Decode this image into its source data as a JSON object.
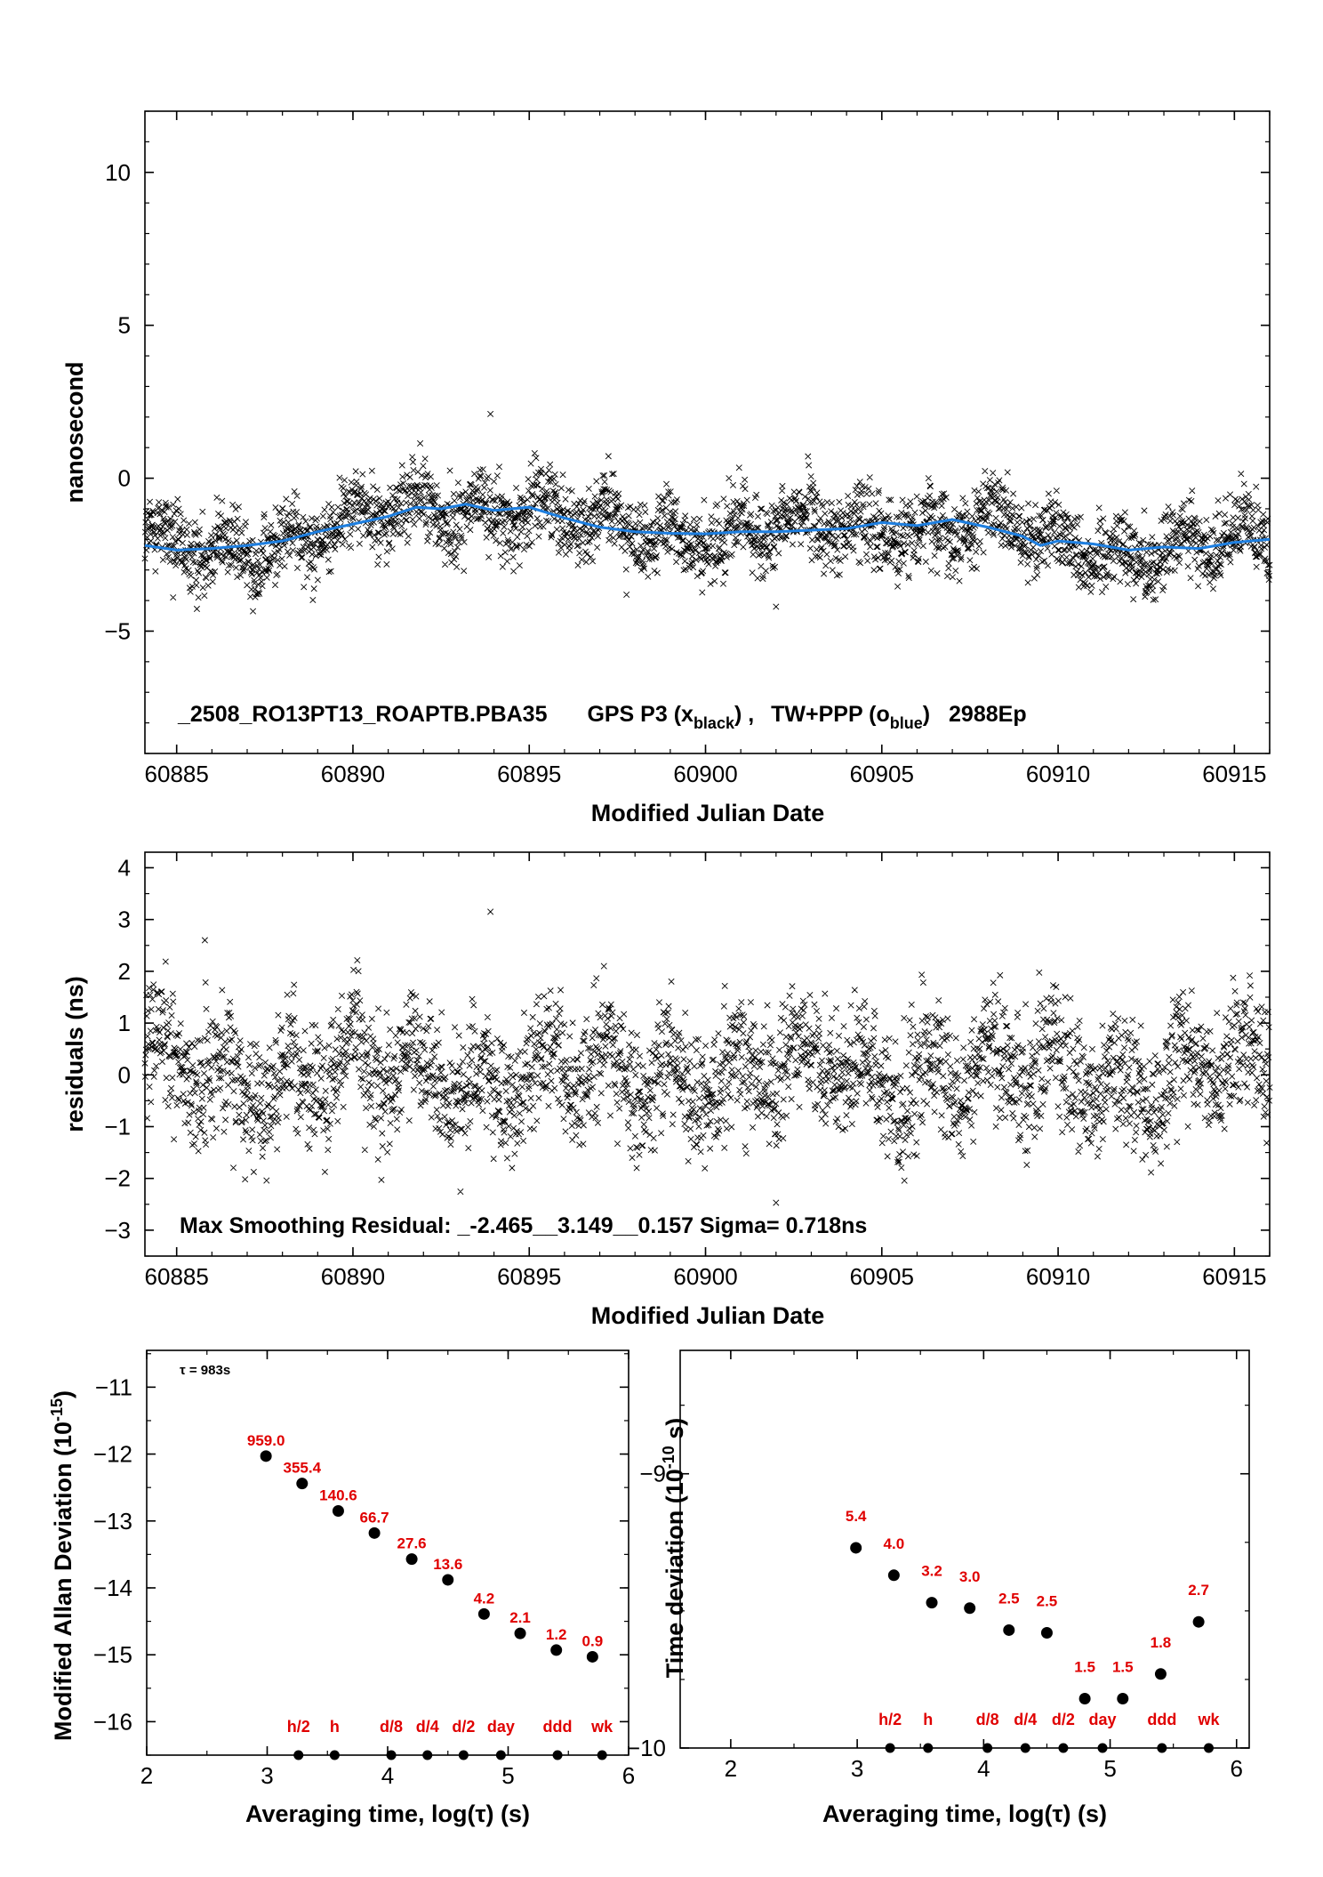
{
  "colors": {
    "points": "#000000",
    "smooth": "#1e7fe0",
    "labels": "#e00000"
  },
  "chart_data": [
    {
      "type": "scatter",
      "title": "_2508_RO13PT13_ROAPTB.PBA35     GPS P3 (x_black) ,  TW+PPP (o_blue)  2988Ep",
      "title_parts": {
        "left": "_2508_RO13PT13_ROAPTB.PBA35",
        "gps": "GPS P3 (x",
        "gps_sub": "black",
        "gps_close": ") ,",
        "tw": "TW+PPP (o",
        "tw_sub": "blue",
        "tw_close": ")",
        "ep": "2988Ep"
      },
      "xlabel": "Modified Julian Date",
      "ylabel": "nanosecond",
      "xlim": [
        60884.1,
        60916.0
      ],
      "ylim": [
        -9.0,
        12.0
      ],
      "xticks": [
        60885,
        60890,
        60895,
        60900,
        60905,
        60910,
        60915
      ],
      "yticks": [
        -5,
        0,
        5,
        10
      ],
      "ytick_labels": [
        "−5",
        "0",
        "5",
        "10"
      ],
      "grid": false,
      "series": [
        {
          "marker": "x",
          "color": "#000000",
          "count": 2988,
          "density_note": "dense noisy cloud around smooth curve, sigma ~0.72 ns",
          "outliers": [
            [
              60893.9,
              2.1
            ],
            [
              60902.0,
              -4.2
            ],
            [
              60884.9,
              -3.9
            ]
          ]
        },
        {
          "marker": "o",
          "color": "#1e7fe0",
          "smooth_x": [
            60884.1,
            60885.0,
            60886.0,
            60887.0,
            60888.0,
            60889.0,
            60890.0,
            60891.0,
            60891.8,
            60892.5,
            60893.2,
            60894.0,
            60895.0,
            60896.0,
            60897.0,
            60898.0,
            60899.0,
            60900.0,
            60901.0,
            60902.0,
            60903.0,
            60904.0,
            60905.0,
            60906.0,
            60907.0,
            60908.0,
            60909.0,
            60909.5,
            60910.0,
            60911.0,
            60912.0,
            60913.0,
            60914.0,
            60915.0,
            60916.0
          ],
          "smooth_y": [
            -2.2,
            -2.35,
            -2.3,
            -2.2,
            -2.05,
            -1.75,
            -1.5,
            -1.25,
            -0.95,
            -1.0,
            -0.85,
            -1.05,
            -0.95,
            -1.3,
            -1.6,
            -1.75,
            -1.8,
            -1.82,
            -1.75,
            -1.75,
            -1.7,
            -1.65,
            -1.45,
            -1.55,
            -1.35,
            -1.6,
            -1.9,
            -2.2,
            -2.05,
            -2.15,
            -2.35,
            -2.25,
            -2.3,
            -2.1,
            -2.0
          ]
        }
      ]
    },
    {
      "type": "scatter",
      "xlabel": "Modified Julian Date",
      "ylabel": "residuals (ns)",
      "xlim": [
        60884.1,
        60916.0
      ],
      "ylim": [
        -3.5,
        4.3
      ],
      "xticks": [
        60885,
        60890,
        60895,
        60900,
        60905,
        60910,
        60915
      ],
      "yticks": [
        -3,
        -2,
        -1,
        0,
        1,
        2,
        3,
        4
      ],
      "ytick_labels": [
        "−3",
        "−2",
        "−1",
        "0",
        "1",
        "2",
        "3",
        "4"
      ],
      "annotation": "Max Smoothing Residual: _-2.465__3.149__0.157  Sigma= 0.718ns",
      "series": [
        {
          "marker": "x",
          "color": "#000000",
          "count": 2988,
          "sigma": 0.718,
          "outliers": [
            [
              60893.9,
              3.15
            ],
            [
              60902.0,
              -2.47
            ],
            [
              60885.8,
              2.6
            ]
          ]
        }
      ]
    },
    {
      "type": "scatter",
      "xlabel": "Averaging time, log(τ) (s)",
      "ylabel": "Modified Allan Deviation (10",
      "ylabel_sup": "-15",
      "ylabel_close": ")",
      "xlim": [
        2,
        6
      ],
      "ylim": [
        -16.5,
        -10.45
      ],
      "xticks": [
        2,
        3,
        4,
        5,
        6
      ],
      "yticks": [
        -16,
        -15,
        -14,
        -13,
        -12,
        -11
      ],
      "ytick_labels": [
        "−16",
        "−15",
        "−14",
        "−13",
        "−12",
        "−11"
      ],
      "tau_label": "τ = 983s",
      "series": [
        {
          "x": [
            2.99,
            3.29,
            3.59,
            3.89,
            4.2,
            4.5,
            4.8,
            5.1,
            5.4,
            5.7
          ],
          "y": [
            -12.03,
            -12.44,
            -12.85,
            -13.18,
            -13.57,
            -13.88,
            -14.39,
            -14.68,
            -14.93,
            -15.03
          ],
          "labels": [
            "959.0",
            "355.4",
            "140.6",
            "66.7",
            "27.6",
            "13.6",
            "4.2",
            "2.1",
            "1.2",
            "0.9"
          ]
        }
      ],
      "markers": {
        "x": [
          3.26,
          3.56,
          4.03,
          4.33,
          4.63,
          4.94,
          5.41,
          5.78
        ],
        "labels": [
          "h/2",
          "h",
          "d/8",
          "d/4",
          "d/2",
          "day",
          "ddd",
          "wk"
        ]
      }
    },
    {
      "type": "scatter",
      "xlabel": "Averaging time, log(τ) (s)",
      "ylabel": "Time deviation (10",
      "ylabel_sup": "-10",
      "ylabel_close": " s)",
      "xlim": [
        1.6,
        6.1
      ],
      "ylim": [
        -10.0,
        -8.55
      ],
      "xticks": [
        2,
        3,
        4,
        5,
        6
      ],
      "yticks": [
        -10,
        -9
      ],
      "ytick_labels": [
        "−10",
        "−9"
      ],
      "series": [
        {
          "x": [
            2.99,
            3.29,
            3.59,
            3.89,
            4.2,
            4.5,
            4.8,
            5.1,
            5.4,
            5.7
          ],
          "y": [
            -9.27,
            -9.37,
            -9.47,
            -9.49,
            -9.57,
            -9.58,
            -9.82,
            -9.82,
            -9.73,
            -9.54
          ],
          "labels": [
            "5.4",
            "4.0",
            "3.2",
            "3.0",
            "2.5",
            "2.5",
            "1.5",
            "1.5",
            "1.8",
            "2.7"
          ]
        }
      ],
      "markers": {
        "x": [
          3.26,
          3.56,
          4.03,
          4.33,
          4.63,
          4.94,
          5.41,
          5.78
        ],
        "labels": [
          "h/2",
          "h",
          "d/8",
          "d/4",
          "d/2",
          "day",
          "ddd",
          "wk"
        ]
      }
    }
  ]
}
